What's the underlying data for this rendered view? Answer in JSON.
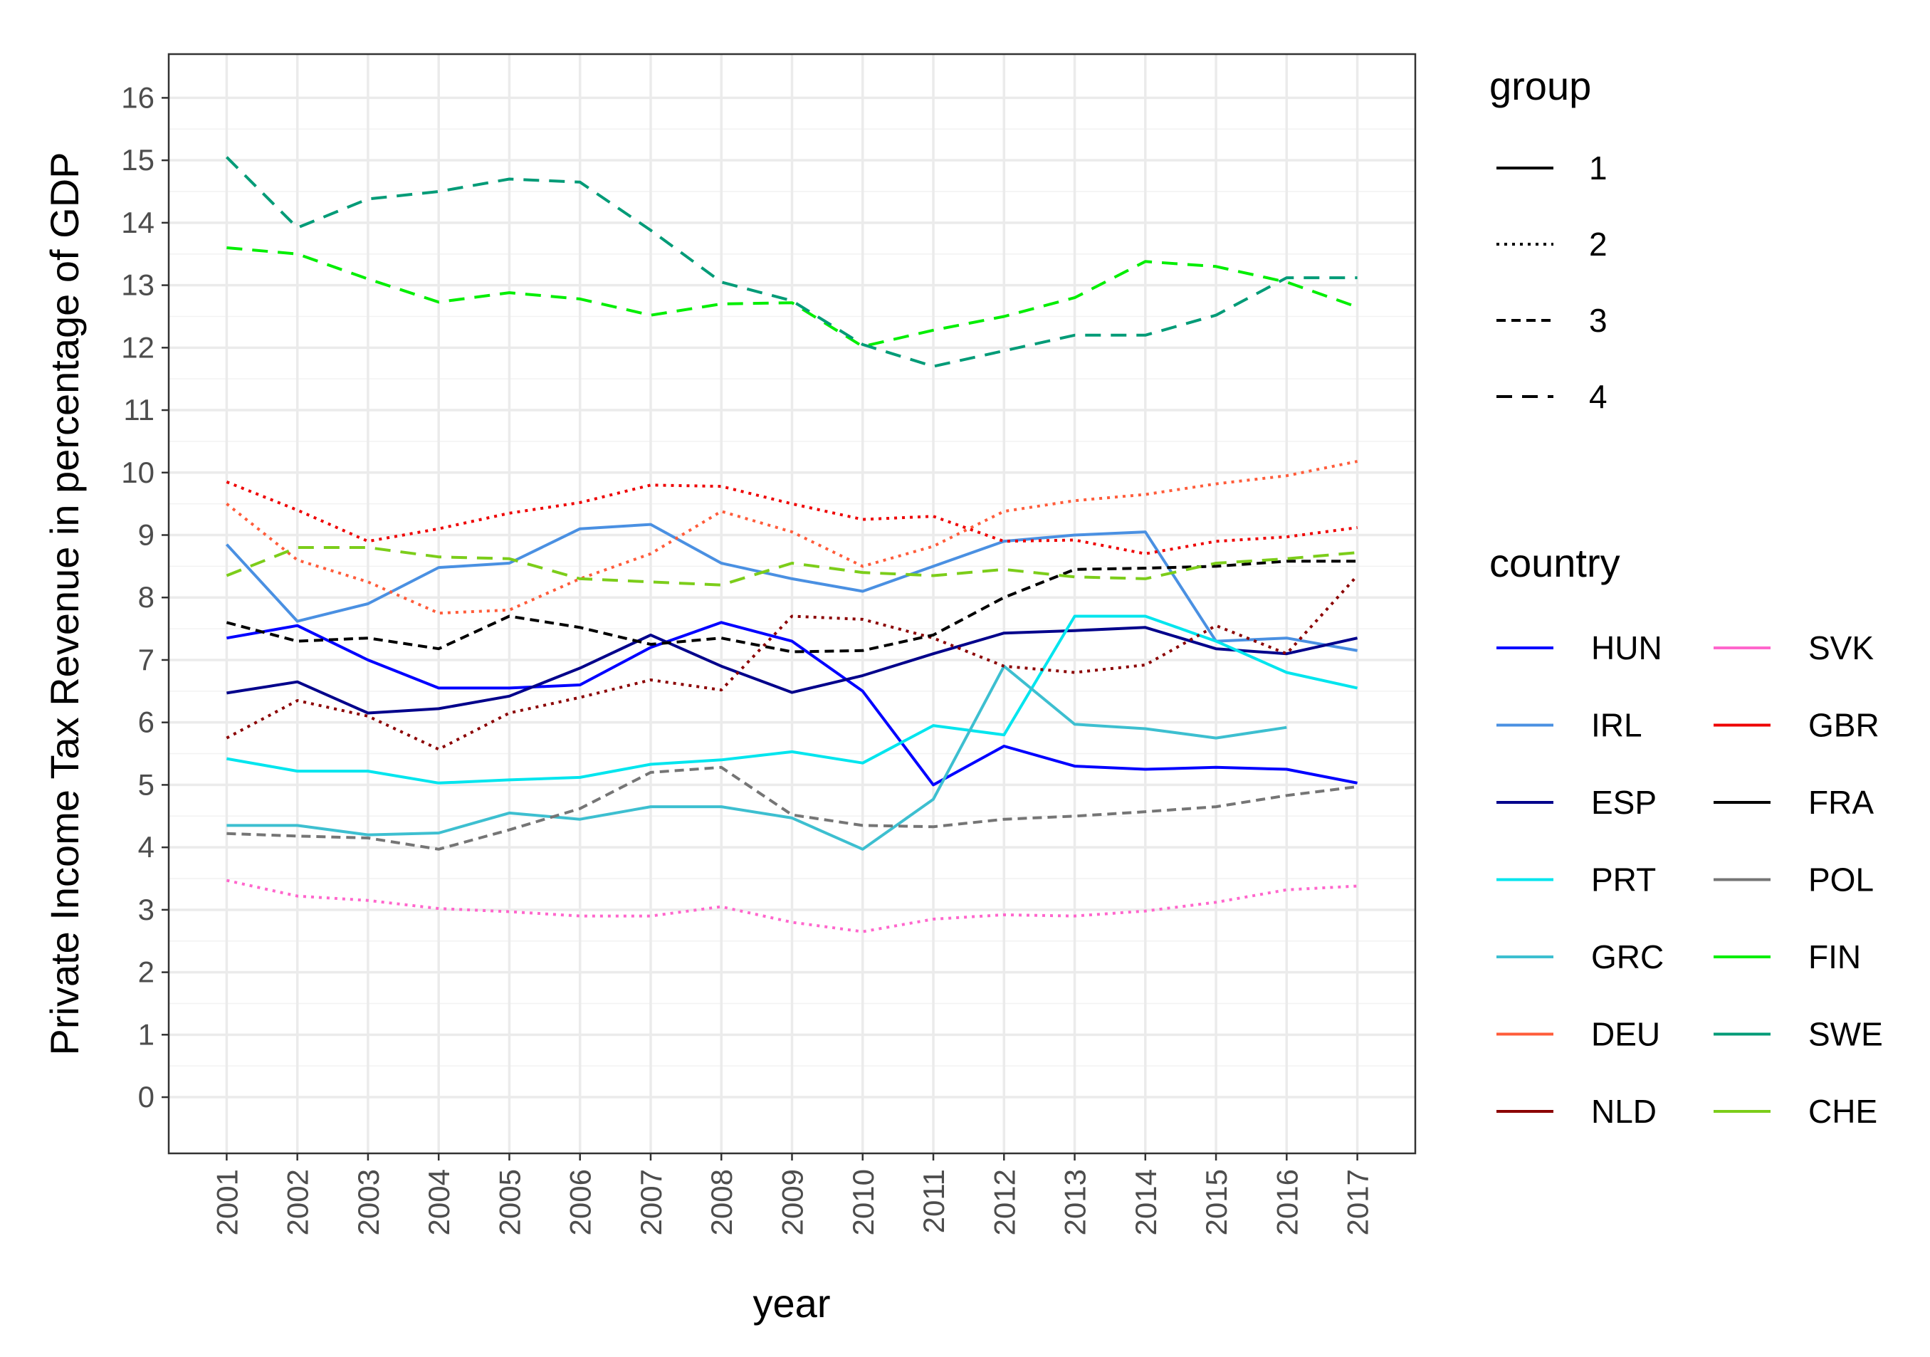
{
  "chart_data": {
    "type": "line",
    "xlabel": "year",
    "ylabel": "Private Income Tax Revenue in percentage of GDP",
    "ylim": [
      -0.9,
      16.7
    ],
    "x": [
      2001,
      2002,
      2003,
      2004,
      2005,
      2006,
      2007,
      2008,
      2009,
      2010,
      2011,
      2012,
      2013,
      2014,
      2015,
      2016,
      2017
    ],
    "x_tick_labels": [
      "2001",
      "2002",
      "2003",
      "2004",
      "2005",
      "2006",
      "2007",
      "2008",
      "2009",
      "2010",
      "2011",
      "2012",
      "2013",
      "2014",
      "2015",
      "2016",
      "2017"
    ],
    "y_ticks": [
      0,
      1,
      2,
      3,
      4,
      5,
      6,
      7,
      8,
      9,
      10,
      11,
      12,
      13,
      14,
      15,
      16
    ],
    "y_tick_labels": [
      "0",
      "1",
      "2",
      "3",
      "4",
      "5",
      "6",
      "7",
      "8",
      "9",
      "10",
      "11",
      "12",
      "13",
      "14",
      "15",
      "16"
    ],
    "grid": true,
    "legend_group": {
      "title": "group",
      "entries": [
        {
          "label": "1",
          "dash": "solid"
        },
        {
          "label": "2",
          "dash": "dotted"
        },
        {
          "label": "3",
          "dash": "dashed"
        },
        {
          "label": "4",
          "dash": "longdash"
        }
      ]
    },
    "legend_country": {
      "title": "country",
      "columns": [
        [
          "HUN",
          "IRL",
          "ESP",
          "PRT",
          "GRC",
          "DEU",
          "NLD"
        ],
        [
          "SVK",
          "GBR",
          "FRA",
          "POL",
          "FIN",
          "SWE",
          "CHE"
        ]
      ]
    },
    "series": [
      {
        "name": "HUN",
        "group": "1",
        "color": "#0000FF",
        "values": [
          7.35,
          7.55,
          7.0,
          6.55,
          6.55,
          6.6,
          7.2,
          7.6,
          7.3,
          6.5,
          5.0,
          5.62,
          5.3,
          5.25,
          5.28,
          5.25,
          5.03
        ]
      },
      {
        "name": "IRL",
        "group": "1",
        "color": "#4A90E2",
        "values": [
          8.85,
          7.62,
          7.9,
          8.48,
          8.55,
          9.1,
          9.17,
          8.55,
          8.3,
          8.1,
          8.5,
          8.9,
          9.0,
          9.05,
          7.3,
          7.35,
          7.15
        ]
      },
      {
        "name": "ESP",
        "group": "1",
        "color": "#00008B",
        "values": [
          6.47,
          6.65,
          6.15,
          6.22,
          6.42,
          6.87,
          7.4,
          6.9,
          6.48,
          6.75,
          7.1,
          7.43,
          7.47,
          7.52,
          7.18,
          7.1,
          7.35
        ]
      },
      {
        "name": "PRT",
        "group": "1",
        "color": "#00E5EE",
        "values": [
          5.42,
          5.22,
          5.22,
          5.03,
          5.08,
          5.12,
          5.33,
          5.4,
          5.53,
          5.35,
          5.95,
          5.8,
          7.7,
          7.7,
          7.3,
          6.8,
          6.55
        ]
      },
      {
        "name": "GRC",
        "group": "1",
        "color": "#3DBFD0",
        "values": [
          4.35,
          4.35,
          4.2,
          4.23,
          4.55,
          4.45,
          4.65,
          4.65,
          4.47,
          3.97,
          4.77,
          6.9,
          5.97,
          5.9,
          5.75,
          5.92,
          null
        ]
      },
      {
        "name": "DEU",
        "group": "2",
        "color": "#FF5C3A",
        "values": [
          9.5,
          8.6,
          8.25,
          7.75,
          7.8,
          8.3,
          8.7,
          9.38,
          9.05,
          8.5,
          8.82,
          9.38,
          9.55,
          9.65,
          9.82,
          9.95,
          10.18
        ]
      },
      {
        "name": "NLD",
        "group": "2",
        "color": "#8B0000",
        "values": [
          5.75,
          6.35,
          6.1,
          5.57,
          6.15,
          6.4,
          6.68,
          6.52,
          7.7,
          7.65,
          7.35,
          6.9,
          6.8,
          6.92,
          7.55,
          7.1,
          8.35
        ]
      },
      {
        "name": "SVK",
        "group": "2",
        "color": "#FF66CC",
        "values": [
          3.47,
          3.22,
          3.15,
          3.02,
          2.97,
          2.9,
          2.9,
          3.05,
          2.8,
          2.65,
          2.85,
          2.92,
          2.9,
          2.98,
          3.12,
          3.32,
          3.38
        ]
      },
      {
        "name": "GBR",
        "group": "2",
        "color": "#EE0000",
        "values": [
          9.85,
          9.4,
          8.9,
          9.1,
          9.35,
          9.52,
          9.8,
          9.78,
          9.5,
          9.25,
          9.3,
          8.9,
          8.92,
          8.7,
          8.9,
          8.97,
          9.12
        ]
      },
      {
        "name": "FRA",
        "group": "3",
        "color": "#000000",
        "values": [
          7.6,
          7.3,
          7.35,
          7.18,
          7.7,
          7.52,
          7.25,
          7.35,
          7.13,
          7.15,
          7.4,
          8.0,
          8.45,
          8.47,
          8.5,
          8.58,
          8.58
        ]
      },
      {
        "name": "POL",
        "group": "3",
        "color": "#757575",
        "values": [
          4.22,
          4.18,
          4.15,
          3.97,
          4.28,
          4.62,
          5.2,
          5.28,
          4.52,
          4.35,
          4.33,
          4.45,
          4.5,
          4.57,
          4.65,
          4.83,
          4.97
        ]
      },
      {
        "name": "FIN",
        "group": "4",
        "color": "#00EE00",
        "values": [
          13.6,
          13.5,
          13.1,
          12.73,
          12.88,
          12.78,
          12.52,
          12.7,
          12.72,
          12.02,
          12.28,
          12.5,
          12.8,
          13.38,
          13.3,
          13.05,
          12.65
        ]
      },
      {
        "name": "SWE",
        "group": "4",
        "color": "#009B77",
        "values": [
          15.05,
          13.92,
          14.38,
          14.5,
          14.7,
          14.65,
          13.88,
          13.05,
          12.75,
          12.05,
          11.7,
          11.95,
          12.2,
          12.2,
          12.52,
          13.12,
          13.12
        ]
      },
      {
        "name": "CHE",
        "group": "4",
        "color": "#7CCD1A",
        "values": [
          8.35,
          8.8,
          8.8,
          8.65,
          8.62,
          8.3,
          8.25,
          8.2,
          8.55,
          8.4,
          8.35,
          8.45,
          8.33,
          8.3,
          8.55,
          8.62,
          8.72
        ]
      }
    ]
  }
}
